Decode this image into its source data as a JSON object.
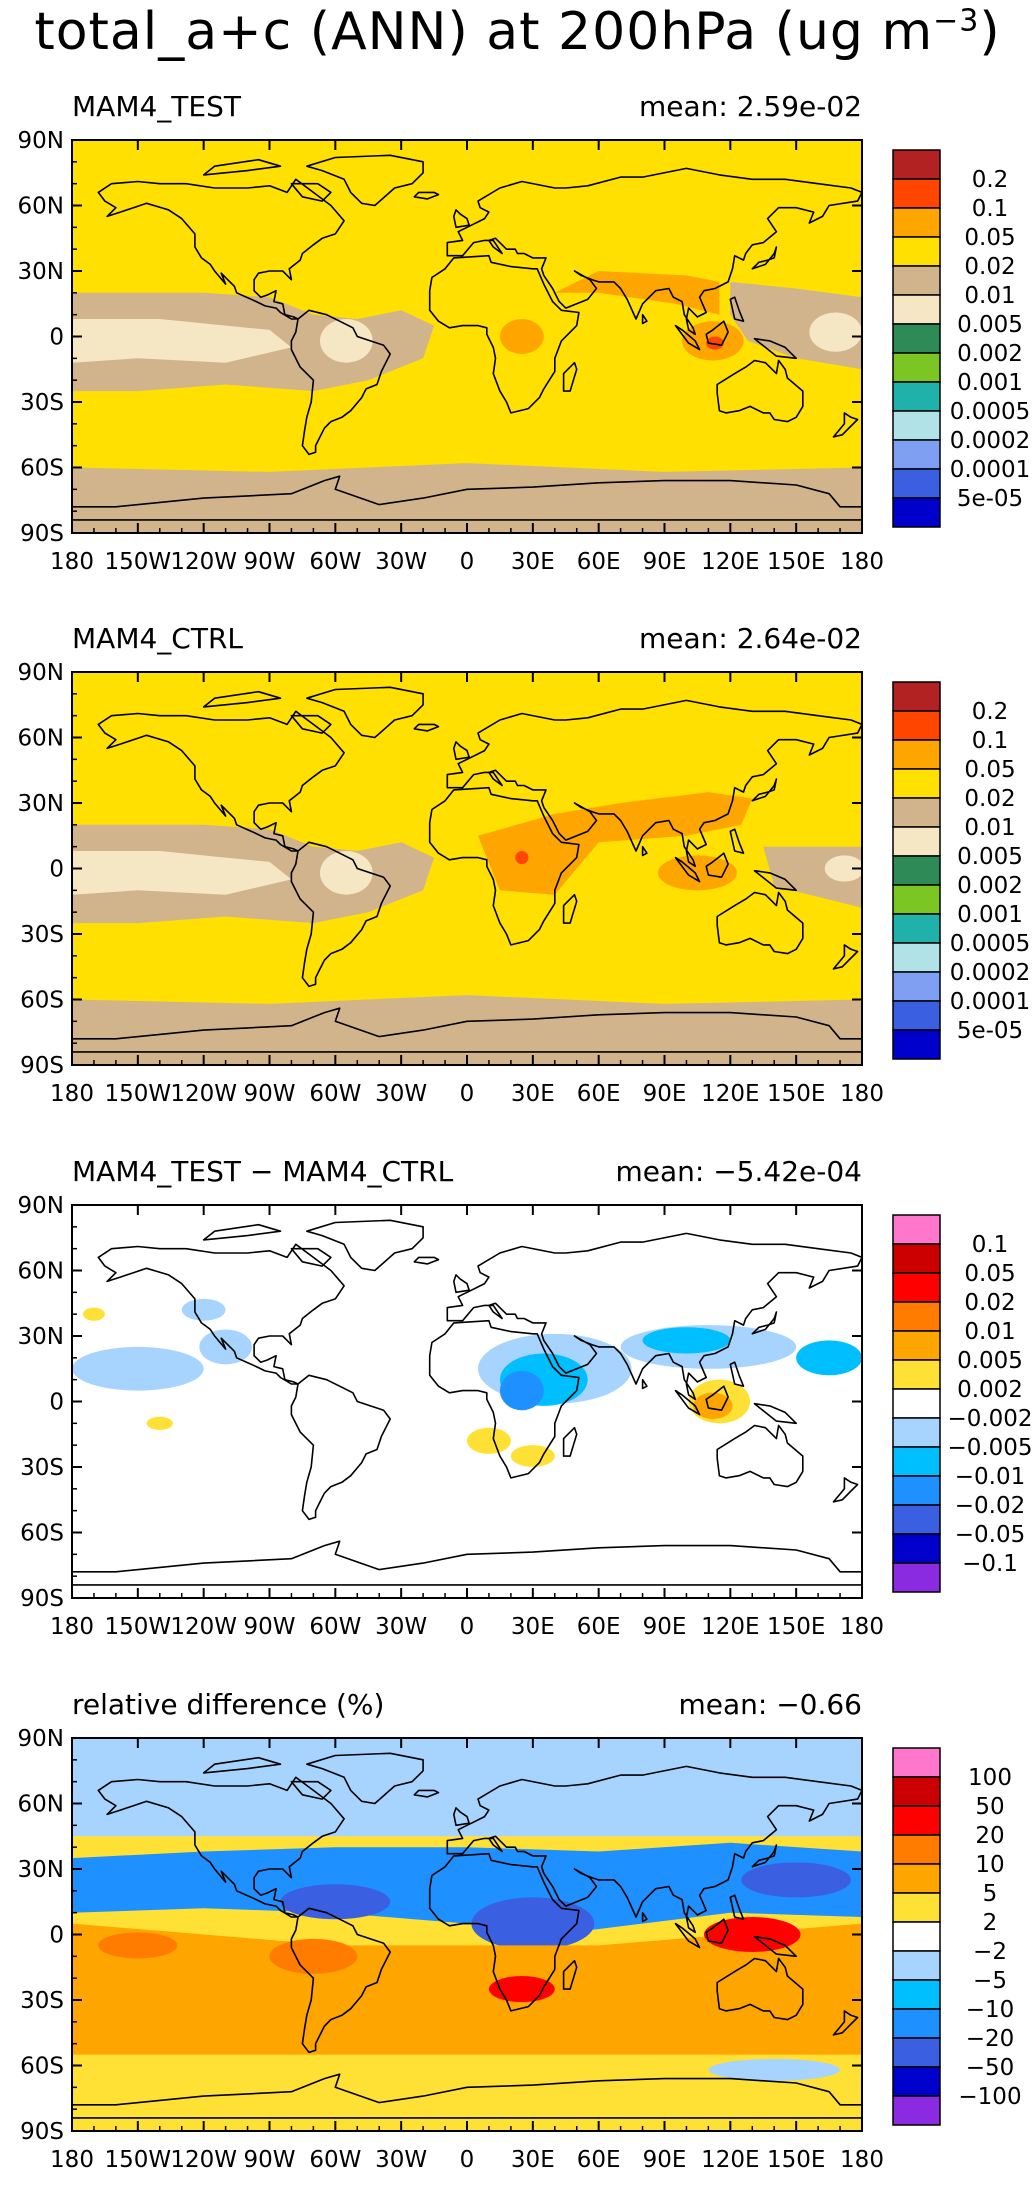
{
  "figure": {
    "title_main": "total_a+c (ANN) at 200hPa (ug m",
    "title_exp": "−3",
    "title_close": ")"
  },
  "colors": {
    "abs_scale": [
      "#0000cd",
      "#3a5fe0",
      "#7e9ff2",
      "#b0e2e8",
      "#20b2aa",
      "#7cc624",
      "#2e8b57",
      "#f5e6c4",
      "#d2b48c",
      "#ffe000",
      "#ffa500",
      "#ff4500",
      "#b22222"
    ],
    "diff_scale": [
      "#8a2be2",
      "#0000cd",
      "#3a5fe0",
      "#1e90ff",
      "#00bfff",
      "#a6d4ff",
      "#ffffff",
      "#ffe135",
      "#ffa500",
      "#ff7c00",
      "#ff0000",
      "#cc0000",
      "#ff77cc"
    ],
    "coast": "#000000"
  },
  "chart_data": [
    {
      "type": "heatmap",
      "title": "MAM4_TEST",
      "stat": "mean: 2.59e-02",
      "x_ticks": [
        "180",
        "150W",
        "120W",
        "90W",
        "60W",
        "30W",
        "0",
        "30E",
        "60E",
        "90E",
        "120E",
        "150E",
        "180"
      ],
      "y_ticks": [
        "90N",
        "60N",
        "30N",
        "0",
        "30S",
        "60S",
        "90S"
      ],
      "colorbar_labels": [
        "0.2",
        "0.1",
        "0.05",
        "0.02",
        "0.01",
        "0.005",
        "0.002",
        "0.001",
        "0.0005",
        "0.0002",
        "0.0001",
        "5e-05"
      ],
      "scale": "abs",
      "field_values_note": "Mostly 0.02-0.05 (yellow); 0.01-0.02 (tan) tropical Pacific/Atlantic bands and Antarctic; 0.005-0.01 cores over central Pacific; 0.05-0.1 over central Africa, S/SE Asia"
    },
    {
      "type": "heatmap",
      "title": "MAM4_CTRL",
      "stat": "mean: 2.64e-02",
      "x_ticks": [
        "180",
        "150W",
        "120W",
        "90W",
        "60W",
        "30W",
        "0",
        "30E",
        "60E",
        "90E",
        "120E",
        "150E",
        "180"
      ],
      "y_ticks": [
        "90N",
        "60N",
        "30N",
        "0",
        "30S",
        "60S",
        "90S"
      ],
      "colorbar_labels": [
        "0.2",
        "0.1",
        "0.05",
        "0.02",
        "0.01",
        "0.005",
        "0.002",
        "0.001",
        "0.0005",
        "0.0002",
        "0.0001",
        "5e-05"
      ],
      "scale": "abs",
      "field_values_note": "Similar to test with larger 0.05-0.1 band over Africa to China"
    },
    {
      "type": "heatmap",
      "title": "MAM4_TEST − MAM4_CTRL",
      "stat": "mean: −5.42e-04",
      "x_ticks": [
        "180",
        "150W",
        "120W",
        "90W",
        "60W",
        "30W",
        "0",
        "30E",
        "60E",
        "90E",
        "120E",
        "150E",
        "180"
      ],
      "y_ticks": [
        "90N",
        "60N",
        "30N",
        "0",
        "30S",
        "60S",
        "90S"
      ],
      "colorbar_labels": [
        "0.1",
        "0.05",
        "0.02",
        "0.01",
        "0.005",
        "0.002",
        "−0.002",
        "−0.005",
        "−0.01",
        "−0.02",
        "−0.05",
        "−0.1"
      ],
      "scale": "diff",
      "field_values_note": "Mostly near zero; negative (blue) over Africa/Asia tropics, positive (orange) over maritime continent"
    },
    {
      "type": "heatmap",
      "title": "relative difference (%)",
      "stat": "mean: −0.66",
      "x_ticks": [
        "180",
        "150W",
        "120W",
        "90W",
        "60W",
        "30W",
        "0",
        "30E",
        "60E",
        "90E",
        "120E",
        "150E",
        "180"
      ],
      "y_ticks": [
        "90N",
        "60N",
        "30N",
        "0",
        "30S",
        "60S",
        "90S"
      ],
      "colorbar_labels": [
        "100",
        "50",
        "20",
        "10",
        "5",
        "2",
        "−2",
        "−5",
        "−10",
        "−20",
        "−50",
        "−100"
      ],
      "scale": "diff",
      "field_values_note": "Negative (blue) across northern tropics, positive (orange/red) across southern tropics and subtropics"
    }
  ]
}
